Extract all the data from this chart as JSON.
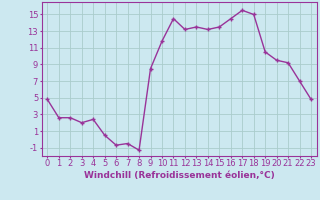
{
  "x": [
    0,
    1,
    2,
    3,
    4,
    5,
    6,
    7,
    8,
    9,
    10,
    11,
    12,
    13,
    14,
    15,
    16,
    17,
    18,
    19,
    20,
    21,
    22,
    23
  ],
  "y": [
    4.8,
    2.6,
    2.6,
    2.0,
    2.4,
    0.5,
    -0.7,
    -0.5,
    -1.3,
    8.5,
    11.8,
    14.5,
    13.2,
    13.5,
    13.2,
    13.5,
    14.5,
    15.5,
    15.0,
    10.5,
    9.5,
    9.2,
    7.0,
    4.8
  ],
  "line_color": "#993399",
  "marker": "+",
  "bg_color": "#cce8f0",
  "grid_color": "#aacccc",
  "ylabel_ticks": [
    -1,
    1,
    3,
    5,
    7,
    9,
    11,
    13,
    15
  ],
  "xlim": [
    -0.5,
    23.5
  ],
  "ylim": [
    -2.0,
    16.5
  ],
  "xticks": [
    0,
    1,
    2,
    3,
    4,
    5,
    6,
    7,
    8,
    9,
    10,
    11,
    12,
    13,
    14,
    15,
    16,
    17,
    18,
    19,
    20,
    21,
    22,
    23
  ],
  "xlabel": "Windchill (Refroidissement éolien,°C)",
  "xlabel_fontsize": 6.5,
  "tick_fontsize": 6.0,
  "tick_color": "#993399",
  "label_color": "#993399",
  "spine_color": "#993399",
  "line_width": 1.0,
  "marker_size": 3.5
}
